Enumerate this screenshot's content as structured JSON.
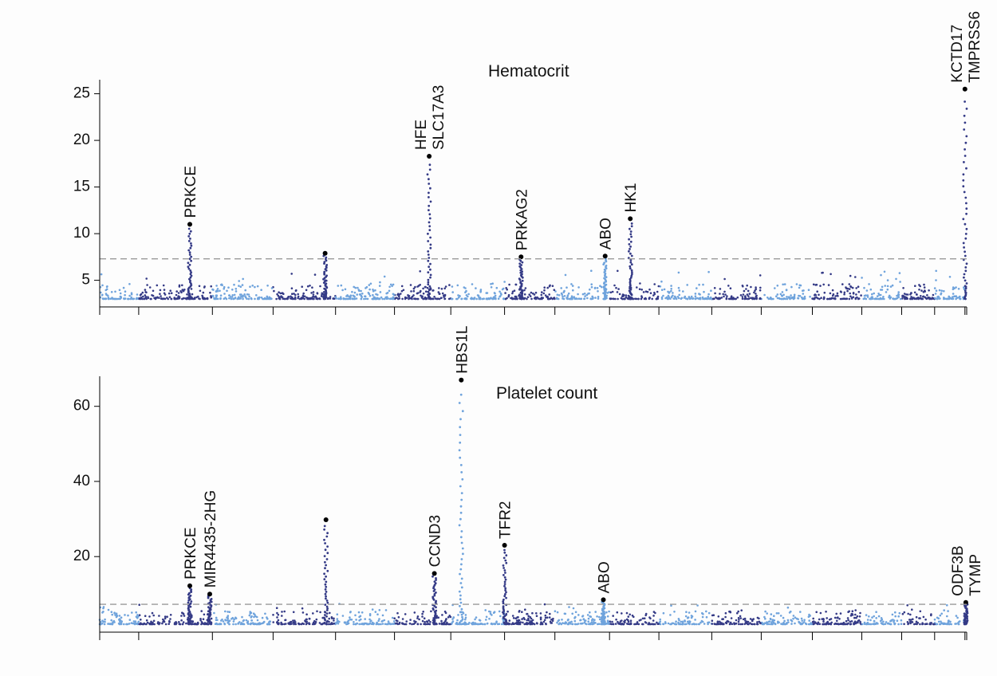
{
  "colors": {
    "odd_chromosome": "#6fa3dc",
    "even_chromosome": "#343a86",
    "lead_point": "#000000",
    "threshold": "#999999",
    "background": "#fdfdfd"
  },
  "chart_data": [
    {
      "type": "scatter",
      "subtype": "manhattan",
      "title": "Hematocrit",
      "xlabel": "",
      "ylabel": "",
      "yticks": [
        5,
        10,
        15,
        20,
        25
      ],
      "ylim": [
        3,
        26.5
      ],
      "xlim": [
        0,
        1
      ],
      "chromosome_boundaries": [
        0,
        0.045,
        0.13,
        0.2,
        0.272,
        0.34,
        0.405,
        0.467,
        0.525,
        0.588,
        0.645,
        0.706,
        0.763,
        0.822,
        0.879,
        0.925,
        0.963,
        0.998,
        1.0
      ],
      "threshold": 7.3,
      "loci": [
        {
          "x": 0.104,
          "peak": 11.0,
          "chromosome": 2,
          "labels": [
            "PRKCE"
          ]
        },
        {
          "x": 0.26,
          "peak": 7.9,
          "chromosome": 4,
          "labels": []
        },
        {
          "x": 0.38,
          "peak": 18.3,
          "chromosome": 6,
          "labels": [
            "HFE",
            "SLC17A3"
          ]
        },
        {
          "x": 0.486,
          "peak": 7.5,
          "chromosome": 7,
          "labels": [
            "PRKAG2"
          ]
        },
        {
          "x": 0.583,
          "peak": 7.6,
          "chromosome": 9,
          "labels": [
            "ABO"
          ]
        },
        {
          "x": 0.612,
          "peak": 11.6,
          "chromosome": 10,
          "labels": [
            "HK1"
          ]
        },
        {
          "x": 0.998,
          "peak": 25.5,
          "chromosome": 22,
          "labels": [
            "KCTD17",
            "TMPRSS6"
          ]
        }
      ]
    },
    {
      "type": "scatter",
      "subtype": "manhattan",
      "title": "Platelet count",
      "xlabel": "",
      "ylabel": "",
      "yticks": [
        20,
        40,
        60
      ],
      "ylim": [
        2,
        68
      ],
      "xlim": [
        0,
        1
      ],
      "chromosome_boundaries": [
        0,
        0.045,
        0.13,
        0.2,
        0.272,
        0.34,
        0.405,
        0.467,
        0.525,
        0.588,
        0.645,
        0.706,
        0.763,
        0.822,
        0.879,
        0.925,
        0.963,
        0.998,
        1.0
      ],
      "threshold": 7.3,
      "loci": [
        {
          "x": 0.104,
          "peak": 12.2,
          "chromosome": 2,
          "labels": [
            "PRKCE"
          ]
        },
        {
          "x": 0.127,
          "peak": 10.0,
          "chromosome": 2,
          "labels": [
            "MIR4435-2HG"
          ]
        },
        {
          "x": 0.261,
          "peak": 29.8,
          "chromosome": 4,
          "labels": []
        },
        {
          "x": 0.386,
          "peak": 15.5,
          "chromosome": 6,
          "labels": [
            "CCND3"
          ]
        },
        {
          "x": 0.417,
          "peak": 67.0,
          "chromosome": 6,
          "labels": [
            "HBS1L"
          ]
        },
        {
          "x": 0.467,
          "peak": 23.0,
          "chromosome": 7,
          "labels": [
            "TFR2"
          ]
        },
        {
          "x": 0.581,
          "peak": 8.5,
          "chromosome": 9,
          "labels": [
            "ABO"
          ]
        },
        {
          "x": 0.999,
          "peak": 7.8,
          "chromosome": 22,
          "labels": [
            "ODF3B",
            "TYMP"
          ]
        }
      ]
    }
  ]
}
